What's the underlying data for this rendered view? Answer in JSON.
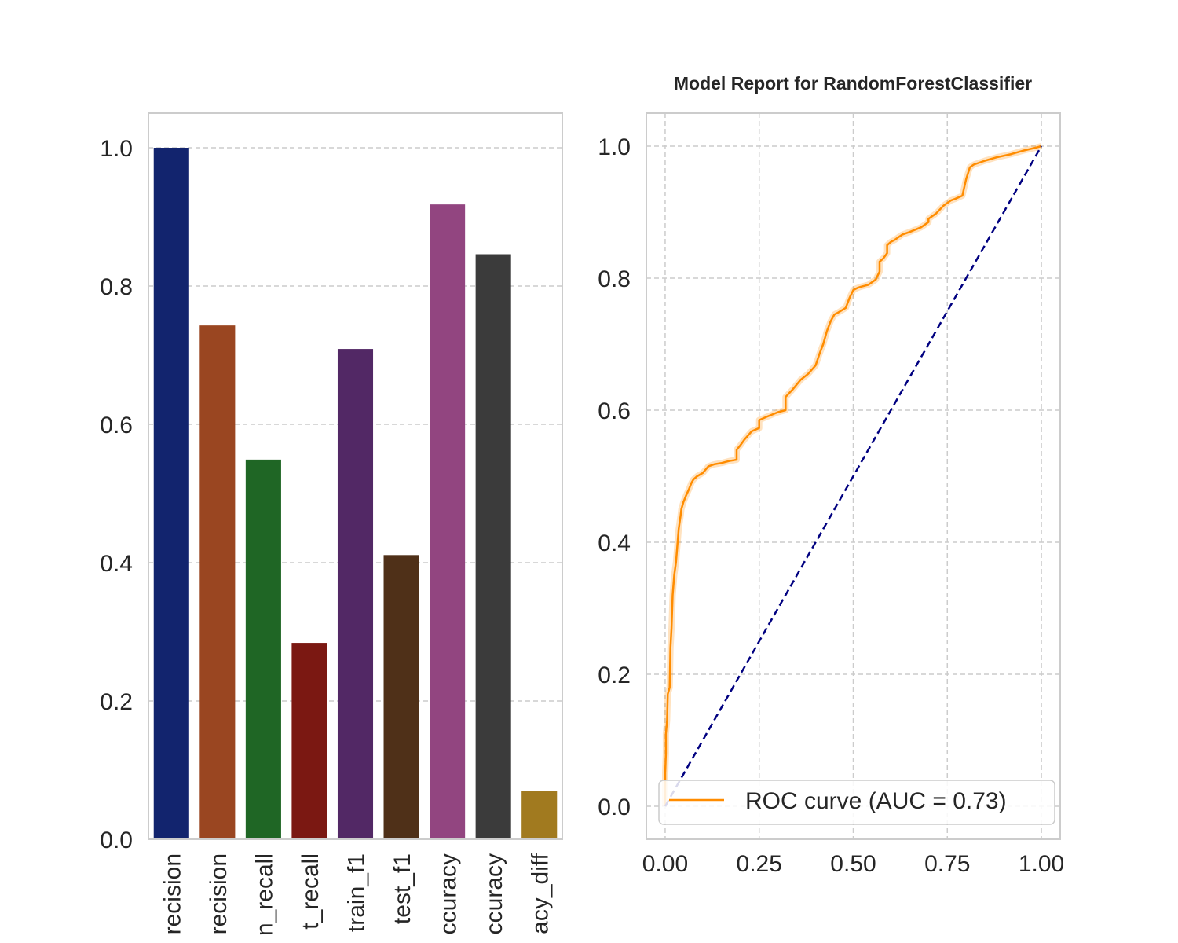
{
  "title": "Model Report for RandomForestClassifier",
  "chart_data": [
    {
      "type": "bar",
      "categories": [
        "recision",
        "recision",
        "n_recall",
        "t_recall",
        "train_f1",
        "test_f1",
        "ccuracy",
        "ccuracy",
        "acy_diff"
      ],
      "values": [
        1.0,
        0.743,
        0.549,
        0.284,
        0.709,
        0.411,
        0.918,
        0.846,
        0.07
      ],
      "colors": [
        "#12246e",
        "#9a4621",
        "#1f6625",
        "#7b1812",
        "#522865",
        "#4f3018",
        "#924580",
        "#3b3b3b",
        "#a17a1f"
      ],
      "ylim": [
        0,
        1.05
      ],
      "yticks": [
        "0.0",
        "0.2",
        "0.4",
        "0.6",
        "0.8",
        "1.0"
      ],
      "grid": true
    },
    {
      "type": "line",
      "title": "Model Report for RandomForestClassifier",
      "xlim": [
        -0.05,
        1.05
      ],
      "ylim": [
        -0.05,
        1.05
      ],
      "xticks": [
        "0.00",
        "0.25",
        "0.50",
        "0.75",
        "1.00"
      ],
      "yticks": [
        "0.0",
        "0.2",
        "0.4",
        "0.6",
        "0.8",
        "1.0"
      ],
      "grid": true,
      "legend_position": "lower right",
      "series": [
        {
          "name": "ROC curve (AUC = 0.73)",
          "color": "#ff8c00",
          "x": [
            0.0,
            0.0,
            0.0,
            0.002,
            0.002,
            0.005,
            0.007,
            0.012,
            0.014,
            0.017,
            0.02,
            0.024,
            0.029,
            0.036,
            0.041,
            0.043,
            0.048,
            0.055,
            0.063,
            0.07,
            0.075,
            0.085,
            0.1,
            0.115,
            0.13,
            0.15,
            0.17,
            0.19,
            0.19,
            0.2,
            0.21,
            0.23,
            0.25,
            0.25,
            0.27,
            0.3,
            0.32,
            0.32,
            0.34,
            0.36,
            0.38,
            0.4,
            0.41,
            0.42,
            0.43,
            0.44,
            0.45,
            0.46,
            0.48,
            0.49,
            0.5,
            0.51,
            0.52,
            0.54,
            0.56,
            0.57,
            0.57,
            0.58,
            0.59,
            0.59,
            0.6,
            0.61,
            0.62,
            0.63,
            0.65,
            0.68,
            0.7,
            0.7,
            0.72,
            0.74,
            0.76,
            0.77,
            0.79,
            0.8,
            0.81,
            0.82,
            0.85,
            0.88,
            0.92,
            0.95,
            0.98,
            1.0
          ],
          "y": [
            0.0,
            0.03,
            0.05,
            0.08,
            0.11,
            0.13,
            0.17,
            0.18,
            0.24,
            0.27,
            0.32,
            0.35,
            0.37,
            0.42,
            0.44,
            0.45,
            0.46,
            0.47,
            0.48,
            0.49,
            0.495,
            0.5,
            0.505,
            0.515,
            0.518,
            0.52,
            0.523,
            0.525,
            0.54,
            0.547,
            0.555,
            0.568,
            0.573,
            0.585,
            0.59,
            0.597,
            0.6,
            0.62,
            0.632,
            0.646,
            0.655,
            0.668,
            0.685,
            0.7,
            0.72,
            0.735,
            0.745,
            0.748,
            0.755,
            0.77,
            0.782,
            0.785,
            0.787,
            0.79,
            0.798,
            0.81,
            0.825,
            0.83,
            0.838,
            0.85,
            0.855,
            0.858,
            0.862,
            0.866,
            0.87,
            0.877,
            0.885,
            0.89,
            0.898,
            0.91,
            0.918,
            0.92,
            0.925,
            0.95,
            0.968,
            0.972,
            0.978,
            0.983,
            0.988,
            0.993,
            0.997,
            1.0
          ]
        },
        {
          "name": "",
          "color": "#000080",
          "dashed": true,
          "x": [
            0,
            1
          ],
          "y": [
            0,
            1
          ]
        }
      ]
    }
  ]
}
